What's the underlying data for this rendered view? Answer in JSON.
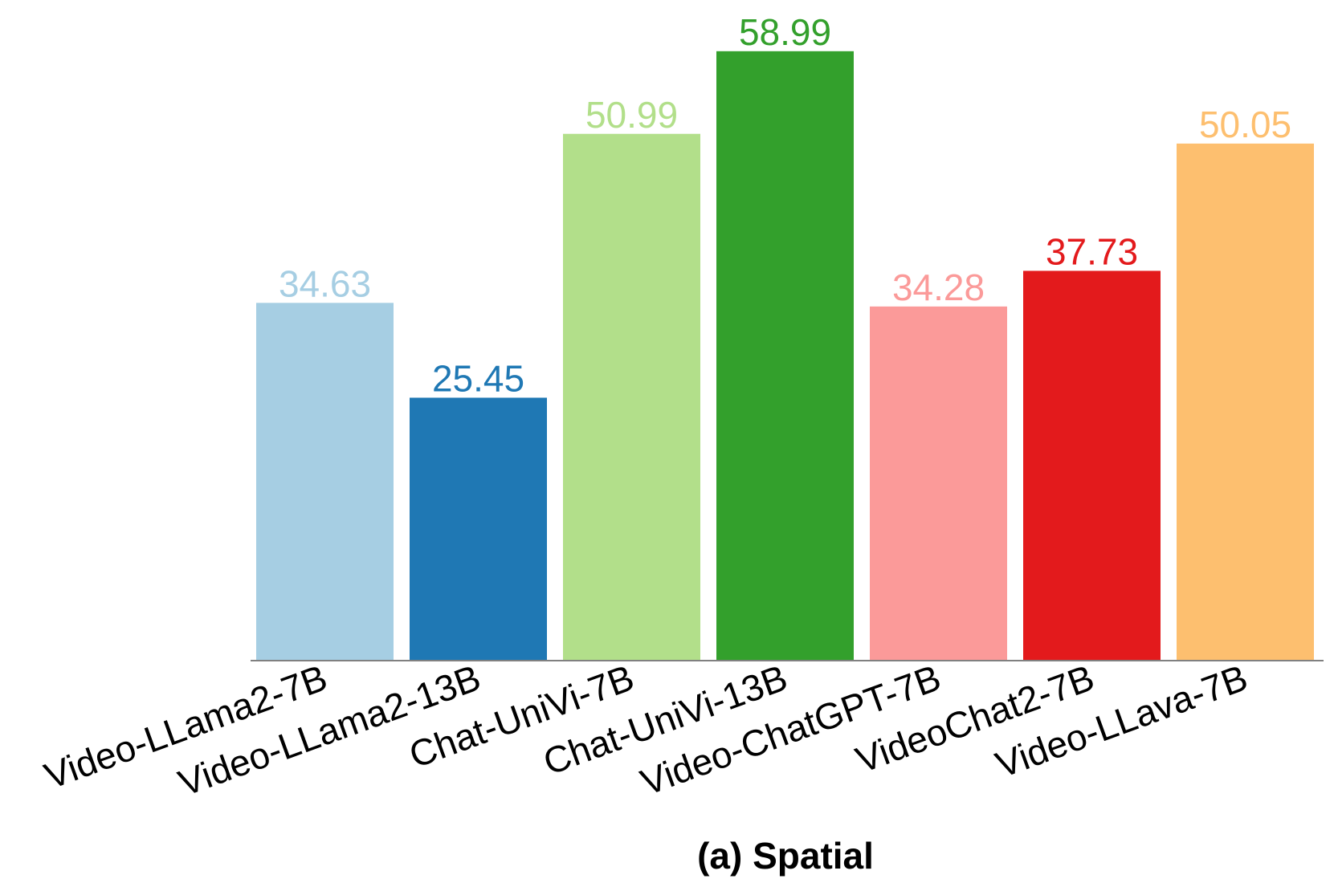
{
  "chart_data": {
    "type": "bar",
    "title": "(a) Spatial",
    "xlabel": "",
    "ylabel": "",
    "categories": [
      "Video-LLama2-7B",
      "Video-LLama2-13B",
      "Chat-UniVi-7B",
      "Chat-UniVi-13B",
      "Video-ChatGPT-7B",
      "VideoChat2-7B",
      "Video-LLava-7B"
    ],
    "values": [
      34.63,
      25.45,
      50.99,
      58.99,
      34.28,
      37.73,
      50.05
    ],
    "value_labels": [
      "34.63",
      "25.45",
      "50.99",
      "58.99",
      "34.28",
      "37.73",
      "50.05"
    ],
    "colors": [
      "#a6cee3",
      "#1f78b4",
      "#b2df8a",
      "#33a02c",
      "#fb9a99",
      "#e31a1c",
      "#fdbf6f"
    ],
    "ylim": [
      0,
      59
    ],
    "grid": false,
    "legend": "none"
  }
}
